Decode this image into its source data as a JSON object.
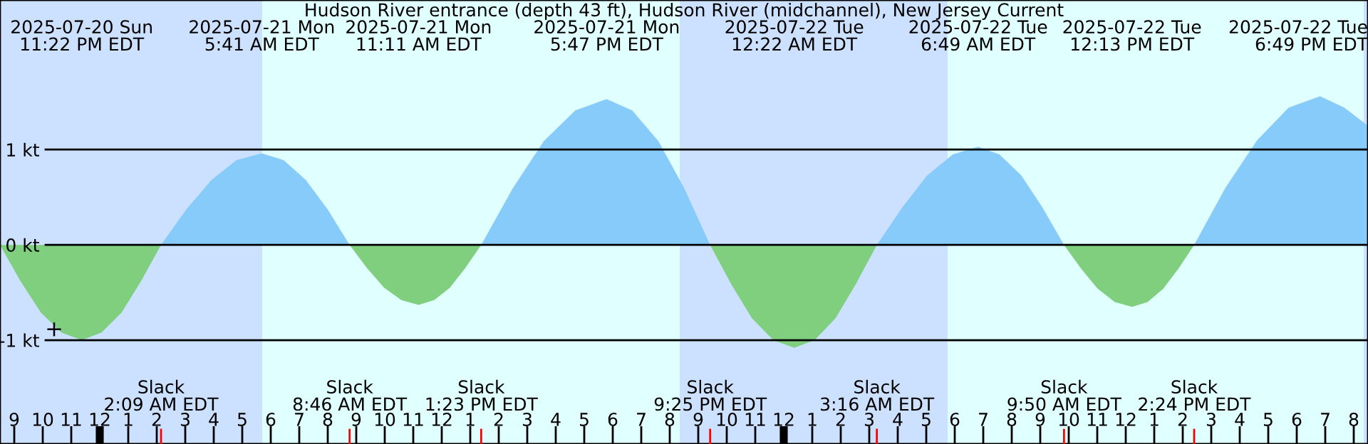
{
  "chart_data": {
    "type": "area",
    "title": "Hudson River entrance (depth 43 ft), Hudson River (midchannel), New Jersey Current",
    "x": [
      "2025-07-20T20:30",
      "2025-07-20T21:13",
      "2025-07-20T21:56",
      "2025-07-20T22:39",
      "2025-07-20T23:22",
      "2025-07-21T00:04",
      "2025-07-21T00:46",
      "2025-07-21T01:27",
      "2025-07-21T02:09",
      "2025-07-21T03:02",
      "2025-07-21T03:55",
      "2025-07-21T04:48",
      "2025-07-21T05:41",
      "2025-07-21T06:27",
      "2025-07-21T07:14",
      "2025-07-21T08:00",
      "2025-07-21T08:46",
      "2025-07-21T09:22",
      "2025-07-21T09:59",
      "2025-07-21T10:35",
      "2025-07-21T11:11",
      "2025-07-21T11:44",
      "2025-07-21T12:17",
      "2025-07-21T12:50",
      "2025-07-21T13:23",
      "2025-07-21T14:29",
      "2025-07-21T15:35",
      "2025-07-21T16:41",
      "2025-07-21T17:47",
      "2025-07-21T18:41",
      "2025-07-21T19:36",
      "2025-07-21T20:31",
      "2025-07-21T21:25",
      "2025-07-21T22:09",
      "2025-07-21T22:53",
      "2025-07-21T23:38",
      "2025-07-22T00:22",
      "2025-07-22T01:05",
      "2025-07-22T01:49",
      "2025-07-22T02:32",
      "2025-07-22T03:16",
      "2025-07-22T04:09",
      "2025-07-22T05:02",
      "2025-07-22T05:56",
      "2025-07-22T06:49",
      "2025-07-22T07:34",
      "2025-07-22T08:20",
      "2025-07-22T09:05",
      "2025-07-22T09:50",
      "2025-07-22T10:26",
      "2025-07-22T11:01",
      "2025-07-22T11:37",
      "2025-07-22T12:13",
      "2025-07-22T12:46",
      "2025-07-22T13:19",
      "2025-07-22T13:51",
      "2025-07-22T14:24",
      "2025-07-22T15:30",
      "2025-07-22T16:37",
      "2025-07-22T17:43",
      "2025-07-22T18:49",
      "2025-07-22T19:40",
      "2025-07-22T20:30"
    ],
    "series": [
      {
        "color": "#87cbfa",
        "values": [
          null,
          null,
          null,
          null,
          null,
          null,
          null,
          null,
          0,
          0.37,
          0.68,
          0.89,
          0.96,
          0.89,
          0.68,
          0.37,
          0,
          null,
          null,
          null,
          null,
          null,
          null,
          null,
          0,
          0.59,
          1.09,
          1.41,
          1.53,
          1.41,
          1.09,
          0.59,
          0,
          null,
          null,
          null,
          null,
          null,
          null,
          null,
          0,
          0.39,
          0.73,
          0.95,
          1.03,
          0.95,
          0.73,
          0.39,
          0,
          null,
          null,
          null,
          null,
          null,
          null,
          null,
          0,
          0.6,
          1.1,
          1.44,
          1.56,
          1.44,
          1.25
        ]
      },
      {
        "color": "#7fcf7f",
        "values": [
          0,
          -0.38,
          -0.71,
          -0.92,
          -1.0,
          -0.92,
          -0.71,
          -0.38,
          0,
          null,
          null,
          null,
          null,
          null,
          null,
          null,
          0,
          -0.24,
          -0.45,
          -0.58,
          -0.63,
          -0.58,
          -0.45,
          -0.24,
          0,
          null,
          null,
          null,
          null,
          null,
          null,
          null,
          0,
          -0.41,
          -0.77,
          -1.0,
          -1.08,
          -1.0,
          -0.77,
          -0.41,
          0,
          null,
          null,
          null,
          null,
          null,
          null,
          null,
          0,
          -0.25,
          -0.46,
          -0.6,
          -0.65,
          -0.6,
          -0.46,
          -0.25,
          0,
          null,
          null,
          null,
          null,
          null,
          null
        ]
      }
    ],
    "xlim": [
      "2025-07-20T20:30",
      "2025-07-22T20:30"
    ],
    "xticks": [
      {
        "value": "2025-07-20T21:00",
        "label": "9"
      },
      {
        "value": "2025-07-20T22:00",
        "label": "10"
      },
      {
        "value": "2025-07-20T23:00",
        "label": "11"
      },
      {
        "value": "2025-07-21T00:00",
        "label": "12"
      },
      {
        "value": "2025-07-21T01:00",
        "label": "1"
      },
      {
        "value": "2025-07-21T02:00",
        "label": "2"
      },
      {
        "value": "2025-07-21T03:00",
        "label": "3"
      },
      {
        "value": "2025-07-21T04:00",
        "label": "4"
      },
      {
        "value": "2025-07-21T05:00",
        "label": "5"
      },
      {
        "value": "2025-07-21T06:00",
        "label": "6"
      },
      {
        "value": "2025-07-21T07:00",
        "label": "7"
      },
      {
        "value": "2025-07-21T08:00",
        "label": "8"
      },
      {
        "value": "2025-07-21T09:00",
        "label": "9"
      },
      {
        "value": "2025-07-21T10:00",
        "label": "10"
      },
      {
        "value": "2025-07-21T11:00",
        "label": "11"
      },
      {
        "value": "2025-07-21T12:00",
        "label": "12"
      },
      {
        "value": "2025-07-21T13:00",
        "label": "1"
      },
      {
        "value": "2025-07-21T14:00",
        "label": "2"
      },
      {
        "value": "2025-07-21T15:00",
        "label": "3"
      },
      {
        "value": "2025-07-21T16:00",
        "label": "4"
      },
      {
        "value": "2025-07-21T17:00",
        "label": "5"
      },
      {
        "value": "2025-07-21T18:00",
        "label": "6"
      },
      {
        "value": "2025-07-21T19:00",
        "label": "7"
      },
      {
        "value": "2025-07-21T20:00",
        "label": "8"
      },
      {
        "value": "2025-07-21T21:00",
        "label": "9"
      },
      {
        "value": "2025-07-21T22:00",
        "label": "10"
      },
      {
        "value": "2025-07-21T23:00",
        "label": "11"
      },
      {
        "value": "2025-07-22T00:00",
        "label": "12"
      },
      {
        "value": "2025-07-22T01:00",
        "label": "1"
      },
      {
        "value": "2025-07-22T02:00",
        "label": "2"
      },
      {
        "value": "2025-07-22T03:00",
        "label": "3"
      },
      {
        "value": "2025-07-22T04:00",
        "label": "4"
      },
      {
        "value": "2025-07-22T05:00",
        "label": "5"
      },
      {
        "value": "2025-07-22T06:00",
        "label": "6"
      },
      {
        "value": "2025-07-22T07:00",
        "label": "7"
      },
      {
        "value": "2025-07-22T08:00",
        "label": "8"
      },
      {
        "value": "2025-07-22T09:00",
        "label": "9"
      },
      {
        "value": "2025-07-22T10:00",
        "label": "10"
      },
      {
        "value": "2025-07-22T11:00",
        "label": "11"
      },
      {
        "value": "2025-07-22T12:00",
        "label": "12"
      },
      {
        "value": "2025-07-22T13:00",
        "label": "1"
      },
      {
        "value": "2025-07-22T14:00",
        "label": "2"
      },
      {
        "value": "2025-07-22T15:00",
        "label": "3"
      },
      {
        "value": "2025-07-22T16:00",
        "label": "4"
      },
      {
        "value": "2025-07-22T17:00",
        "label": "5"
      },
      {
        "value": "2025-07-22T18:00",
        "label": "6"
      },
      {
        "value": "2025-07-22T19:00",
        "label": "7"
      },
      {
        "value": "2025-07-22T20:00",
        "label": "8"
      }
    ],
    "ylim": [
      -2.09,
      2.57
    ],
    "yticks": [
      {
        "value": 1,
        "label": "1 kt"
      },
      {
        "value": 0,
        "label": "0 kt"
      },
      {
        "value": -1,
        "label": "-1 kt"
      }
    ],
    "grid": "y",
    "bands": [
      {
        "axis": "x",
        "from": "2025-07-20T20:30",
        "to": "2025-07-21T05:42",
        "color": "#cce0ff"
      },
      {
        "axis": "x",
        "from": "2025-07-21T05:42",
        "to": "2025-07-21T20:21",
        "color": "#e0ffff"
      },
      {
        "axis": "x",
        "from": "2025-07-21T20:21",
        "to": "2025-07-22T05:45",
        "color": "#cce0ff"
      },
      {
        "axis": "x",
        "from": "2025-07-22T05:45",
        "to": "2025-07-22T20:21",
        "color": "#e0ffff"
      },
      {
        "axis": "x",
        "from": "2025-07-22T20:21",
        "to": "2025-07-22T20:30",
        "color": "#cce0ff"
      }
    ],
    "annotations": [
      "2025-07-20 Sun\n11:22 PM EDT",
      "2025-07-21 Mon\n5:41 AM EDT",
      "2025-07-21 Mon\n11:11 AM EDT",
      "2025-07-21 Mon\n5:47 PM EDT",
      "2025-07-22 Tue\n12:22 AM EDT",
      "2025-07-22 Tue\n6:49 AM EDT",
      "2025-07-22 Tue\n12:13 PM EDT",
      "2025-07-22 Tue\n6:49 PM EDT",
      "Slack\n2:09 AM EDT",
      "Slack\n8:46 AM EDT",
      "Slack\n1:23 PM EDT",
      "Slack\n9:25 PM EDT",
      "Slack\n3:16 AM EDT",
      "Slack\n9:50 AM EDT",
      "Slack\n2:24 PM EDT",
      "+"
    ],
    "legend": false
  }
}
